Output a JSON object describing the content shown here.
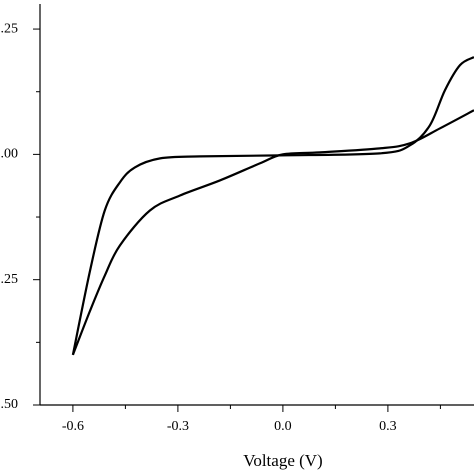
{
  "chart_data": {
    "type": "line",
    "x_label": "Voltage (V)",
    "xlim": [
      -0.694,
      0.546
    ],
    "ylim": [
      -0.5,
      0.3
    ],
    "xticks": [
      -0.6,
      -0.3,
      {
        "value": 0.0,
        "label": "0.0"
      },
      0.3
    ],
    "yticks": [
      {
        "value": 0.25,
        "label": ".25"
      },
      {
        "value": 0.0,
        "label": ".00"
      },
      {
        "value": -0.25,
        "label": ".25"
      },
      {
        "value": -0.5,
        "label": ".50"
      }
    ],
    "x_minor_ticks": [
      -0.45,
      -0.15,
      0.15,
      0.45
    ],
    "y_minor_ticks": [
      0.125,
      -0.125,
      -0.375
    ],
    "series": [
      {
        "color": "#000000",
        "x": [
          -0.6,
          -0.551,
          -0.509,
          -0.466,
          -0.423,
          -0.351,
          -0.237,
          -0.009,
          0.277,
          0.363,
          0.42,
          0.463,
          0.506,
          0.546
        ],
        "values": [
          -0.4,
          -0.232,
          -0.112,
          -0.056,
          -0.026,
          -0.008,
          -0.004,
          -0.002,
          0.002,
          0.018,
          0.058,
          0.128,
          0.178,
          0.194
        ]
      },
      {
        "color": "#000000",
        "x": [
          -0.6,
          -0.551,
          -0.509,
          -0.466,
          -0.38,
          -0.294,
          -0.18,
          -0.066,
          0.0,
          0.106,
          0.277,
          0.363,
          0.449,
          0.546
        ],
        "values": [
          -0.4,
          -0.312,
          -0.242,
          -0.182,
          -0.112,
          -0.082,
          -0.052,
          -0.018,
          0.0,
          0.004,
          0.012,
          0.022,
          0.052,
          0.088
        ]
      }
    ]
  }
}
